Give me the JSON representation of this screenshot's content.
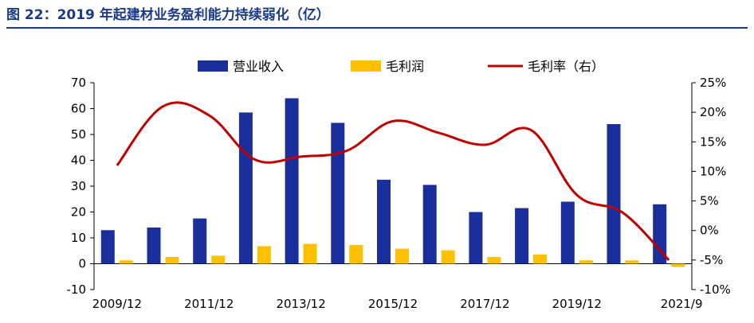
{
  "title": "图 22：2019 年起建材业务盈利能力持续弱化（亿）",
  "chart_data": {
    "type": "bar",
    "title": "图 22：2019 年起建材业务盈利能力持续弱化（亿）",
    "categories": [
      "2009/12",
      "2010/12",
      "2011/12",
      "2012/12",
      "2013/12",
      "2014/12",
      "2015/12",
      "2016/12",
      "2017/12",
      "2018/12",
      "2019/12",
      "2020/12",
      "2021/9"
    ],
    "x_tick_labels": [
      "2009/12",
      "",
      "2011/12",
      "",
      "2013/12",
      "",
      "2015/12",
      "",
      "2017/12",
      "",
      "2019/12",
      "",
      "2021/9"
    ],
    "series": [
      {
        "name": "营业收入",
        "type": "bar",
        "axis": "left",
        "color": "#1a2e9c",
        "values": [
          13.0,
          14.0,
          17.5,
          58.5,
          64.0,
          54.5,
          32.5,
          30.5,
          20.0,
          21.5,
          24.0,
          54.0,
          23.0
        ]
      },
      {
        "name": "毛利润",
        "type": "bar",
        "axis": "left",
        "color": "#ffc000",
        "values": [
          1.3,
          2.6,
          3.1,
          6.8,
          7.7,
          7.2,
          5.8,
          5.2,
          2.6,
          3.6,
          1.3,
          1.3,
          -1.2
        ]
      },
      {
        "name": "毛利率（右）",
        "type": "line",
        "axis": "right",
        "color": "#c00000",
        "values": [
          11.0,
          21.0,
          19.5,
          12.0,
          12.5,
          13.5,
          18.5,
          16.5,
          14.5,
          17.0,
          6.0,
          3.0,
          -5.0
        ]
      }
    ],
    "y_left": {
      "min": -10,
      "max": 70,
      "ticks": [
        -10,
        0,
        10,
        20,
        30,
        40,
        50,
        60,
        70
      ]
    },
    "y_right": {
      "min": -10,
      "max": 25,
      "ticks": [
        "-10%",
        "-5%",
        "0%",
        "5%",
        "10%",
        "15%",
        "20%",
        "25%"
      ]
    },
    "legend": {
      "position": "top",
      "entries": [
        "营业收入",
        "毛利润",
        "毛利率（右）"
      ]
    },
    "grid": false
  }
}
